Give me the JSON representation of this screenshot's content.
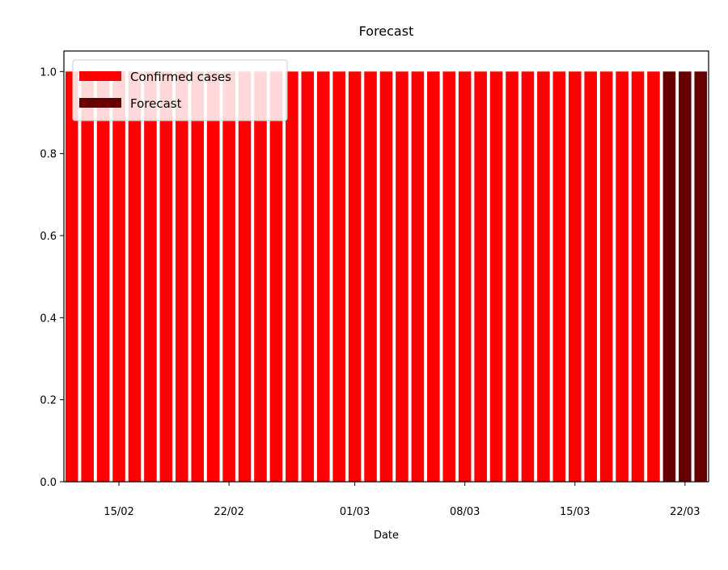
{
  "chart_data": {
    "type": "bar",
    "title": "Forecast",
    "xlabel": "Date",
    "ylabel": "",
    "ylim": [
      0,
      1.05
    ],
    "yticks": [
      "0.0",
      "0.2",
      "0.4",
      "0.6",
      "0.8",
      "1.0"
    ],
    "x_start": "2020-02-12",
    "x_end": "2020-03-23",
    "xticks": [
      {
        "date": "2020-02-15",
        "label": "15/02"
      },
      {
        "date": "2020-02-22",
        "label": "22/02"
      },
      {
        "date": "2020-03-01",
        "label": "01/03"
      },
      {
        "date": "2020-03-08",
        "label": "08/03"
      },
      {
        "date": "2020-03-15",
        "label": "15/03"
      },
      {
        "date": "2020-03-22",
        "label": "22/03"
      }
    ],
    "legend_position": "top-left",
    "grid": false,
    "series": [
      {
        "name": "Confirmed cases",
        "color": "#ff0000",
        "points": [
          {
            "x": "2020-02-12",
            "y": 1.0
          },
          {
            "x": "2020-02-13",
            "y": 1.0
          },
          {
            "x": "2020-02-14",
            "y": 1.0
          },
          {
            "x": "2020-02-15",
            "y": 1.0
          },
          {
            "x": "2020-02-16",
            "y": 1.0
          },
          {
            "x": "2020-02-17",
            "y": 1.0
          },
          {
            "x": "2020-02-18",
            "y": 1.0
          },
          {
            "x": "2020-02-19",
            "y": 1.0
          },
          {
            "x": "2020-02-20",
            "y": 1.0
          },
          {
            "x": "2020-02-21",
            "y": 1.0
          },
          {
            "x": "2020-02-22",
            "y": 1.0
          },
          {
            "x": "2020-02-23",
            "y": 1.0
          },
          {
            "x": "2020-02-24",
            "y": 1.0
          },
          {
            "x": "2020-02-25",
            "y": 1.0
          },
          {
            "x": "2020-02-26",
            "y": 1.0
          },
          {
            "x": "2020-02-27",
            "y": 1.0
          },
          {
            "x": "2020-02-28",
            "y": 1.0
          },
          {
            "x": "2020-02-29",
            "y": 1.0
          },
          {
            "x": "2020-03-01",
            "y": 1.0
          },
          {
            "x": "2020-03-02",
            "y": 1.0
          },
          {
            "x": "2020-03-03",
            "y": 1.0
          },
          {
            "x": "2020-03-04",
            "y": 1.0
          },
          {
            "x": "2020-03-05",
            "y": 1.0
          },
          {
            "x": "2020-03-06",
            "y": 1.0
          },
          {
            "x": "2020-03-07",
            "y": 1.0
          },
          {
            "x": "2020-03-08",
            "y": 1.0
          },
          {
            "x": "2020-03-09",
            "y": 1.0
          },
          {
            "x": "2020-03-10",
            "y": 1.0
          },
          {
            "x": "2020-03-11",
            "y": 1.0
          },
          {
            "x": "2020-03-12",
            "y": 1.0
          },
          {
            "x": "2020-03-13",
            "y": 1.0
          },
          {
            "x": "2020-03-14",
            "y": 1.0
          },
          {
            "x": "2020-03-15",
            "y": 1.0
          },
          {
            "x": "2020-03-16",
            "y": 1.0
          },
          {
            "x": "2020-03-17",
            "y": 1.0
          },
          {
            "x": "2020-03-18",
            "y": 1.0
          },
          {
            "x": "2020-03-19",
            "y": 1.0
          },
          {
            "x": "2020-03-20",
            "y": 1.0
          }
        ]
      },
      {
        "name": "Forecast",
        "color": "#660000",
        "points": [
          {
            "x": "2020-03-21",
            "y": 1.0
          },
          {
            "x": "2020-03-22",
            "y": 1.0
          },
          {
            "x": "2020-03-23",
            "y": 1.0
          }
        ]
      }
    ]
  }
}
